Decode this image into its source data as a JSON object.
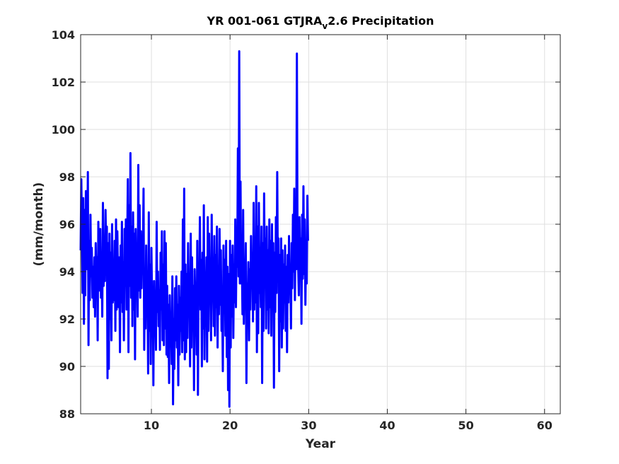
{
  "chart_data": {
    "type": "line",
    "title_main": "YR 001-061 GTJRA",
    "title_subscript": "v",
    "title_rest": "2.6 Precipitation",
    "xlabel": "Year",
    "ylabel": "(mm/month)",
    "xlim": [
      1,
      62
    ],
    "ylim": [
      88,
      104
    ],
    "xticks": [
      10,
      20,
      30,
      40,
      50,
      60
    ],
    "yticks": [
      88,
      90,
      92,
      94,
      96,
      98,
      100,
      102,
      104
    ],
    "grid": true,
    "line_color": "#0000ff",
    "series": [
      {
        "x_start": 1,
        "x_step": 0.0833333,
        "values": [
          94.9,
          97.9,
          95.5,
          93.1,
          97.1,
          91.8,
          96.6,
          93.0,
          97.4,
          95.0,
          94.1,
          98.2,
          90.9,
          95.3,
          92.8,
          96.4,
          93.8,
          95.0,
          92.9,
          94.2,
          92.5,
          94.6,
          92.1,
          95.2,
          93.6,
          94.6,
          91.1,
          96.1,
          93.2,
          94.3,
          95.8,
          92.9,
          94.6,
          92.1,
          96.9,
          93.4,
          95.2,
          93.6,
          96.6,
          94.8,
          95.9,
          89.5,
          95.2,
          89.9,
          95.6,
          92.0,
          94.8,
          91.1,
          96.0,
          92.7,
          94.4,
          92.8,
          95.3,
          91.5,
          96.2,
          92.4,
          95.7,
          93.8,
          92.5,
          94.6,
          90.6,
          95.1,
          92.7,
          96.1,
          92.3,
          94.4,
          91.1,
          95.8,
          93.4,
          96.2,
          92.4,
          94.9,
          97.9,
          90.6,
          96.8,
          93.4,
          99.0,
          92.9,
          95.9,
          91.7,
          96.5,
          92.4,
          95.6,
          90.3,
          95.8,
          93.4,
          94.7,
          92.1,
          98.5,
          93.2,
          96.8,
          92.9,
          95.7,
          93.3,
          95.4,
          94.6,
          97.5,
          90.7,
          93.9,
          91.6,
          95.1,
          92.4,
          93.6,
          89.7,
          96.5,
          91.5,
          94.3,
          90.1,
          95.0,
          92.7,
          93.2,
          89.2,
          93.6,
          91.8,
          92.7,
          90.7,
          96.1,
          92.3,
          94.0,
          91.7,
          93.2,
          90.7,
          94.8,
          92.4,
          95.7,
          91.1,
          94.3,
          90.9,
          95.7,
          91.6,
          95.2,
          90.5,
          93.4,
          90.4,
          92.6,
          89.3,
          93.0,
          91.0,
          92.2,
          90.1,
          93.8,
          88.4,
          92.0,
          89.9,
          93.3,
          91.1,
          93.8,
          90.8,
          92.6,
          89.2,
          93.4,
          90.5,
          92.9,
          91.5,
          94.0,
          90.6,
          96.2,
          91.1,
          97.5,
          90.3,
          94.3,
          90.6,
          93.9,
          91.2,
          95.2,
          92.4,
          93.9,
          90.0,
          95.6,
          90.8,
          94.6,
          91.6,
          93.4,
          89.0,
          94.1,
          92.7,
          93.1,
          90.5,
          95.3,
          88.8,
          94.2,
          93.1,
          96.3,
          92.4,
          94.5,
          90.0,
          94.8,
          91.6,
          96.8,
          90.3,
          93.6,
          92.7,
          94.6,
          90.2,
          96.3,
          91.5,
          95.6,
          93.1,
          94.2,
          91.1,
          96.4,
          92.9,
          94.0,
          91.7,
          95.5,
          91.3,
          94.7,
          92.5,
          95.9,
          90.8,
          94.0,
          92.2,
          95.8,
          92.6,
          94.9,
          91.5,
          93.0,
          89.8,
          95.1,
          92.6,
          94.5,
          91.3,
          95.3,
          90.4,
          94.2,
          89.0,
          93.9,
          88.3,
          95.3,
          90.8,
          94.7,
          92.1,
          95.1,
          91.2,
          94.3,
          92.7,
          96.2,
          92.5,
          95.4,
          94.2,
          99.2,
          93.8,
          103.3,
          93.5,
          97.8,
          93.5,
          94.5,
          92.2,
          96.6,
          91.8,
          94.5,
          93.1,
          95.2,
          89.3,
          93.5,
          92.3,
          94.4,
          91.1,
          94.1,
          92.4,
          95.5,
          93.3,
          94.8,
          91.9,
          96.9,
          92.4,
          94.4,
          92.7,
          97.6,
          90.6,
          95.9,
          91.4,
          96.9,
          93.1,
          94.3,
          92.5,
          95.9,
          89.3,
          95.2,
          91.5,
          97.3,
          93.7,
          95.4,
          91.6,
          95.9,
          92.4,
          94.9,
          91.4,
          96.2,
          92.5,
          95.3,
          91.3,
          96.0,
          93.1,
          95.2,
          89.1,
          94.8,
          92.3,
          96.3,
          93.1,
          98.2,
          93.8,
          95.4,
          89.8,
          94.7,
          91.9,
          95.4,
          90.8,
          94.9,
          91.6,
          94.3,
          92.7,
          95.1,
          91.5,
          94.2,
          90.6,
          94.7,
          92.7,
          95.5,
          93.2,
          93.9,
          91.6,
          95.2,
          93.3,
          96.4,
          94.0,
          97.5,
          92.8,
          96.6,
          94.1,
          103.2,
          95.1,
          94.2,
          93.0,
          96.3,
          93.9,
          95.4,
          91.8,
          96.4,
          93.7,
          97.6,
          93.9,
          96.2,
          92.6,
          94.8,
          93.5,
          97.2,
          95.3
        ]
      }
    ]
  }
}
